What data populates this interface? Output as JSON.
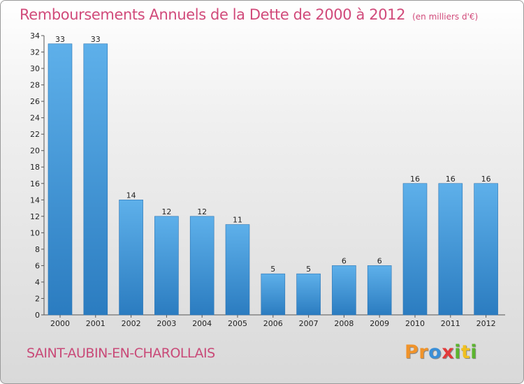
{
  "header": {
    "title": "Remboursements Annuels de la Dette de 2000 à 2012",
    "unit": "(en milliers d'€)"
  },
  "footer": {
    "city": "SAINT-AUBIN-EN-CHAROLLAIS",
    "logo_letters": [
      "P",
      "r",
      "o",
      "x",
      "i",
      "t",
      "i"
    ],
    "logo_colors": [
      "#f0932a",
      "#f0932a",
      "#3a8fd8",
      "#e23a3a",
      "#5bb52e",
      "#f0c020",
      "#5bb52e"
    ]
  },
  "colors": {
    "bar_top": "#5eb0ea",
    "bar_bottom": "#2b7cc0",
    "bar_edge": "#2a74b4"
  },
  "chart_data": {
    "type": "bar",
    "categories": [
      "2000",
      "2001",
      "2002",
      "2003",
      "2004",
      "2005",
      "2006",
      "2007",
      "2008",
      "2009",
      "2010",
      "2011",
      "2012"
    ],
    "values": [
      33,
      33,
      14,
      12,
      12,
      11,
      5,
      5,
      6,
      6,
      16,
      16,
      16
    ],
    "data_labels": [
      "33",
      "33",
      "14",
      "12",
      "12",
      "11",
      "5",
      "5",
      "6",
      "6",
      "16",
      "16",
      "16"
    ],
    "ylim": [
      0,
      34
    ],
    "yticks": [
      "0",
      "2",
      "4",
      "6",
      "8",
      "10",
      "12",
      "14",
      "16",
      "18",
      "20",
      "22",
      "24",
      "26",
      "28",
      "30",
      "32",
      "34"
    ],
    "grid": false,
    "legend": "none"
  }
}
